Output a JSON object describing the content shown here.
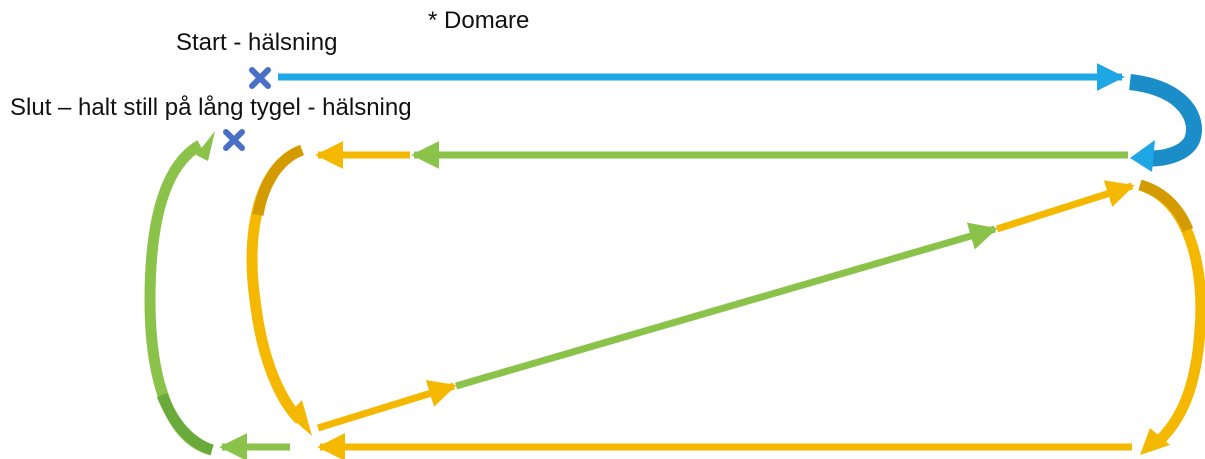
{
  "labels": {
    "judge": "* Domare",
    "start": "Start - hälsning",
    "end": "Slut – halt still på lång tygel - hälsning"
  },
  "colors": {
    "blue": "#1ea7e4",
    "blue_dark": "#1b8ec9",
    "green": "#8bc34a",
    "green_dark": "#6aaa3a",
    "yellow": "#f5b800",
    "yellow_dark": "#d49b00",
    "marker": "#4a6fc7"
  },
  "markers": [
    {
      "name": "start-marker",
      "symbol": "cross"
    },
    {
      "name": "end-marker",
      "symbol": "cross"
    }
  ]
}
